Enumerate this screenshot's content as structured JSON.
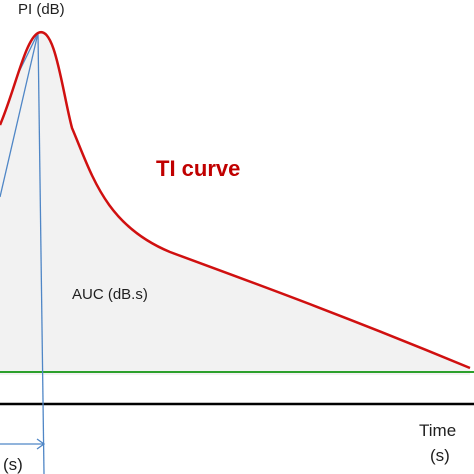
{
  "labels": {
    "peak_intensity": "PI (dB)",
    "area_under_curve": "AUC (dB.s)",
    "curve_title": "TI curve",
    "time_axis": "Time",
    "time_unit": "(s)",
    "time_to_peak_unit": "(s)"
  },
  "colors": {
    "curve": "#d01010",
    "curve_fill": "#f2f2f2",
    "baseline": "#2ca02c",
    "time_axis": "#000000",
    "construction_lines": "#4f86c6",
    "curve_title": "#c00000"
  }
}
